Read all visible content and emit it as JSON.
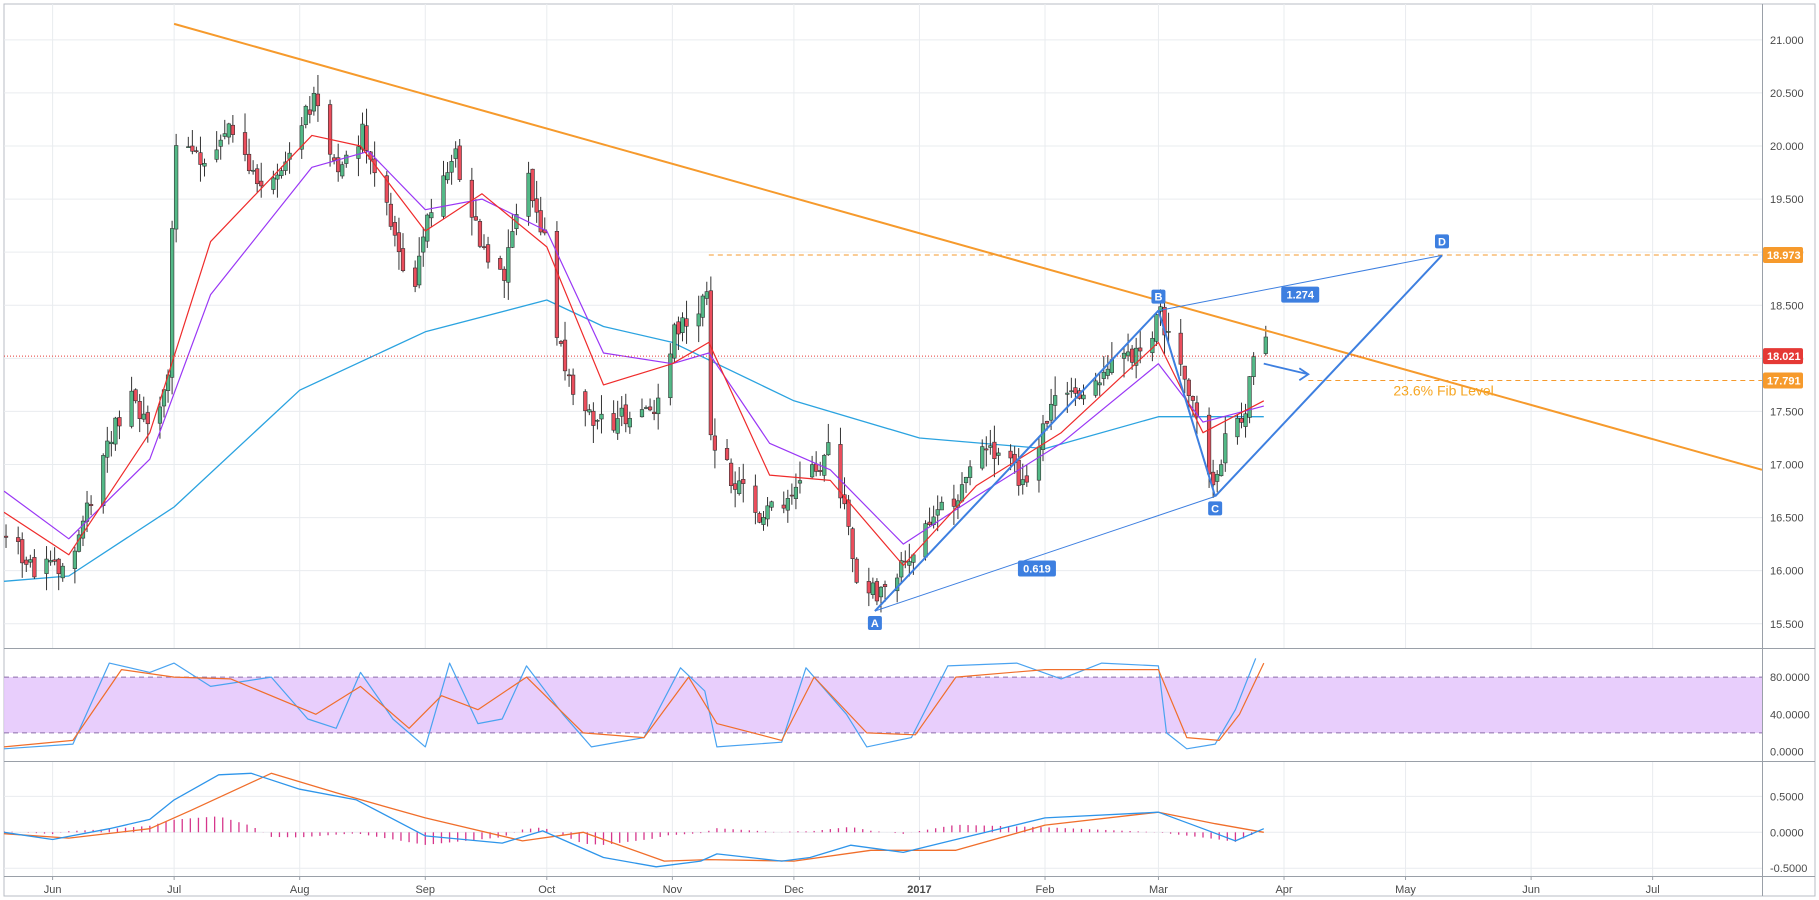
{
  "colors": {
    "bull": "#53b987",
    "bear": "#eb4d5c",
    "ema_fast": "#ef2b2b",
    "ema_mid": "#9a37f5",
    "ma_slow": "#2ba3e0",
    "trendline": "#f69a2c",
    "pattern": "#3d7fe0",
    "stoch_k": "#4aa3f0",
    "stoch_d": "#f06e2b",
    "stoch_band": "#e4c6fb",
    "macd": "#2e95ea",
    "signal": "#f06e2b",
    "hist": "#d6368c",
    "current_price": "#e53935",
    "level_tag": "#f69a2c",
    "grid": "#e9ecef"
  },
  "chart_data": [
    {
      "type": "candlestick",
      "panel": "price",
      "ylim": [
        15.3,
        21.3
      ],
      "price_ticks": [
        "21.000",
        "20.500",
        "20.000",
        "19.500",
        "19.000",
        "18.500",
        "18.000",
        "17.500",
        "17.000",
        "16.500",
        "16.000",
        "15.500"
      ],
      "date_range": [
        "2016-05-20",
        "2017-07-28"
      ],
      "x_ticks": [
        {
          "label": "Jun",
          "date": "2016-06-01"
        },
        {
          "label": "Jul",
          "date": "2016-07-01"
        },
        {
          "label": "Aug",
          "date": "2016-08-01"
        },
        {
          "label": "Sep",
          "date": "2016-09-01"
        },
        {
          "label": "Oct",
          "date": "2016-10-01"
        },
        {
          "label": "Nov",
          "date": "2016-11-01"
        },
        {
          "label": "Dec",
          "date": "2016-12-01"
        },
        {
          "label": "2017",
          "date": "2017-01-01"
        },
        {
          "label": "Feb",
          "date": "2017-02-01"
        },
        {
          "label": "Mar",
          "date": "2017-03-01"
        },
        {
          "label": "Apr",
          "date": "2017-04-01"
        },
        {
          "label": "May",
          "date": "2017-05-01"
        },
        {
          "label": "Jun",
          "date": "2017-06-01"
        },
        {
          "label": "Jul",
          "date": "2017-07-01"
        }
      ],
      "close_path": [
        [
          "2016-05-20",
          16.3
        ],
        [
          "2016-05-27",
          16.05
        ],
        [
          "2016-06-03",
          15.95
        ],
        [
          "2016-06-08",
          16.4
        ],
        [
          "2016-06-15",
          17.3
        ],
        [
          "2016-06-20",
          17.6
        ],
        [
          "2016-06-24",
          17.35
        ],
        [
          "2016-06-29",
          17.85
        ],
        [
          "2016-06-30",
          19.3
        ],
        [
          "2016-07-01",
          20.0
        ],
        [
          "2016-07-08",
          19.8
        ],
        [
          "2016-07-15",
          20.2
        ],
        [
          "2016-07-22",
          19.6
        ],
        [
          "2016-07-28",
          19.85
        ],
        [
          "2016-08-04",
          20.5
        ],
        [
          "2016-08-10",
          19.75
        ],
        [
          "2016-08-16",
          20.1
        ],
        [
          "2016-08-22",
          19.5
        ],
        [
          "2016-08-28",
          18.6
        ],
        [
          "2016-09-01",
          19.3
        ],
        [
          "2016-09-08",
          19.9
        ],
        [
          "2016-09-14",
          19.1
        ],
        [
          "2016-09-20",
          18.8
        ],
        [
          "2016-09-26",
          19.7
        ],
        [
          "2016-09-30",
          19.1
        ],
        [
          "2016-10-03",
          18.2
        ],
        [
          "2016-10-08",
          17.6
        ],
        [
          "2016-10-13",
          17.35
        ],
        [
          "2016-10-20",
          17.45
        ],
        [
          "2016-10-27",
          17.55
        ],
        [
          "2016-11-01",
          18.3
        ],
        [
          "2016-11-09",
          18.55
        ],
        [
          "2016-11-10",
          17.3
        ],
        [
          "2016-11-15",
          16.9
        ],
        [
          "2016-11-21",
          16.55
        ],
        [
          "2016-11-28",
          16.65
        ],
        [
          "2016-12-04",
          16.9
        ],
        [
          "2016-12-09",
          17.1
        ],
        [
          "2016-12-13",
          16.6
        ],
        [
          "2016-12-16",
          15.95
        ],
        [
          "2016-12-22",
          15.75
        ],
        [
          "2016-12-27",
          16.0
        ],
        [
          "2017-01-01",
          16.3
        ],
        [
          "2017-01-10",
          16.75
        ],
        [
          "2017-01-18",
          17.2
        ],
        [
          "2017-01-26",
          16.85
        ],
        [
          "2017-02-03",
          17.55
        ],
        [
          "2017-02-10",
          17.75
        ],
        [
          "2017-02-17",
          17.95
        ],
        [
          "2017-02-24",
          18.05
        ],
        [
          "2017-03-01",
          18.4
        ],
        [
          "2017-03-07",
          17.75
        ],
        [
          "2017-03-10",
          17.4
        ],
        [
          "2017-03-13",
          16.95
        ],
        [
          "2017-03-15",
          16.85
        ],
        [
          "2017-03-17",
          17.3
        ],
        [
          "2017-03-22",
          17.55
        ],
        [
          "2017-03-24",
          18.1
        ]
      ],
      "candle_range": [
        "2016-05-20",
        "2017-03-27"
      ],
      "ema_fast": [
        [
          "2016-05-20",
          16.55
        ],
        [
          "2016-06-05",
          16.15
        ],
        [
          "2016-06-25",
          17.3
        ],
        [
          "2016-07-10",
          19.1
        ],
        [
          "2016-08-04",
          20.1
        ],
        [
          "2016-08-16",
          20.0
        ],
        [
          "2016-09-01",
          19.2
        ],
        [
          "2016-09-15",
          19.55
        ],
        [
          "2016-10-01",
          19.05
        ],
        [
          "2016-10-15",
          17.75
        ],
        [
          "2016-11-01",
          17.95
        ],
        [
          "2016-11-10",
          18.15
        ],
        [
          "2016-11-25",
          16.9
        ],
        [
          "2016-12-10",
          16.85
        ],
        [
          "2016-12-28",
          16.05
        ],
        [
          "2017-01-15",
          16.8
        ],
        [
          "2017-02-05",
          17.3
        ],
        [
          "2017-03-01",
          18.15
        ],
        [
          "2017-03-12",
          17.3
        ],
        [
          "2017-03-27",
          17.6
        ]
      ],
      "ema_mid": [
        [
          "2016-05-20",
          16.75
        ],
        [
          "2016-06-05",
          16.3
        ],
        [
          "2016-06-25",
          17.05
        ],
        [
          "2016-07-10",
          18.6
        ],
        [
          "2016-08-04",
          19.8
        ],
        [
          "2016-08-18",
          19.95
        ],
        [
          "2016-09-01",
          19.4
        ],
        [
          "2016-09-15",
          19.5
        ],
        [
          "2016-10-01",
          19.2
        ],
        [
          "2016-10-15",
          18.05
        ],
        [
          "2016-11-01",
          17.95
        ],
        [
          "2016-11-10",
          18.05
        ],
        [
          "2016-11-25",
          17.2
        ],
        [
          "2016-12-10",
          16.95
        ],
        [
          "2016-12-28",
          16.25
        ],
        [
          "2017-01-15",
          16.7
        ],
        [
          "2017-02-05",
          17.2
        ],
        [
          "2017-03-01",
          17.95
        ],
        [
          "2017-03-12",
          17.4
        ],
        [
          "2017-03-27",
          17.55
        ]
      ],
      "ma_slow": [
        [
          "2016-05-20",
          15.9
        ],
        [
          "2016-06-05",
          15.95
        ],
        [
          "2016-07-01",
          16.6
        ],
        [
          "2016-08-01",
          17.7
        ],
        [
          "2016-09-01",
          18.25
        ],
        [
          "2016-10-01",
          18.55
        ],
        [
          "2016-10-15",
          18.3
        ],
        [
          "2016-11-01",
          18.15
        ],
        [
          "2016-12-01",
          17.6
        ],
        [
          "2017-01-01",
          17.25
        ],
        [
          "2017-02-01",
          17.15
        ],
        [
          "2017-03-01",
          17.45
        ],
        [
          "2017-03-27",
          17.45
        ]
      ],
      "trendline": [
        [
          "2016-07-01",
          21.15
        ],
        [
          "2017-07-28",
          16.95
        ]
      ],
      "abcd_pattern": [
        {
          "label": "A",
          "date": "2016-12-21",
          "price": 15.62
        },
        {
          "label": "B",
          "date": "2017-03-01",
          "price": 18.45
        },
        {
          "label": "C",
          "date": "2017-03-15",
          "price": 16.7
        },
        {
          "label": "D",
          "date": "2017-05-10",
          "price": 18.97
        }
      ],
      "ratio_labels": [
        {
          "text": "0.619",
          "date": "2017-01-30",
          "price": 16.02
        },
        {
          "text": "1.274",
          "date": "2017-04-05",
          "price": 18.6
        }
      ],
      "projection_arrow": [
        [
          "2017-03-27",
          17.95
        ],
        [
          "2017-04-07",
          17.85
        ]
      ],
      "levels": [
        {
          "price": 18.973,
          "label": "18.973",
          "style": "dashed-orange",
          "from": "2016-11-10"
        },
        {
          "price": 18.021,
          "label": "18.021",
          "style": "dotted-red",
          "from": "2016-05-20"
        },
        {
          "price": 17.791,
          "label": "17.791",
          "style": "dashed-orange",
          "from": "2017-04-07"
        }
      ],
      "annotations": [
        {
          "text": "23.6% Fib Level",
          "date": "2017-04-28",
          "price": 17.65
        }
      ]
    },
    {
      "type": "line",
      "panel": "stochastic",
      "ylim": [
        -8,
        108
      ],
      "ticks": [
        "80.0000",
        "40.0000",
        "0.0000"
      ],
      "band": [
        20,
        80
      ],
      "series": [
        {
          "name": "",
          "role": "k",
          "points": [
            [
              "2016-05-20",
              3
            ],
            [
              "2016-06-06",
              8
            ],
            [
              "2016-06-15",
              95
            ],
            [
              "2016-06-25",
              85
            ],
            [
              "2016-07-01",
              95
            ],
            [
              "2016-07-10",
              70
            ],
            [
              "2016-07-25",
              80
            ],
            [
              "2016-08-03",
              35
            ],
            [
              "2016-08-10",
              25
            ],
            [
              "2016-08-16",
              85
            ],
            [
              "2016-08-24",
              35
            ],
            [
              "2016-09-01",
              5
            ],
            [
              "2016-09-07",
              95
            ],
            [
              "2016-09-14",
              30
            ],
            [
              "2016-09-20",
              35
            ],
            [
              "2016-09-26",
              92
            ],
            [
              "2016-10-05",
              40
            ],
            [
              "2016-10-12",
              5
            ],
            [
              "2016-10-25",
              15
            ],
            [
              "2016-11-03",
              90
            ],
            [
              "2016-11-09",
              65
            ],
            [
              "2016-11-12",
              5
            ],
            [
              "2016-11-28",
              10
            ],
            [
              "2016-12-04",
              90
            ],
            [
              "2016-12-14",
              40
            ],
            [
              "2016-12-19",
              5
            ],
            [
              "2016-12-30",
              15
            ],
            [
              "2017-01-08",
              92
            ],
            [
              "2017-01-25",
              95
            ],
            [
              "2017-02-05",
              78
            ],
            [
              "2017-02-15",
              95
            ],
            [
              "2017-03-01",
              92
            ],
            [
              "2017-03-03",
              20
            ],
            [
              "2017-03-08",
              3
            ],
            [
              "2017-03-15",
              8
            ],
            [
              "2017-03-20",
              45
            ],
            [
              "2017-03-25",
              100
            ]
          ]
        },
        {
          "name": "",
          "role": "d",
          "points": [
            [
              "2016-05-20",
              5
            ],
            [
              "2016-06-06",
              12
            ],
            [
              "2016-06-18",
              88
            ],
            [
              "2016-07-01",
              80
            ],
            [
              "2016-07-15",
              78
            ],
            [
              "2016-08-05",
              40
            ],
            [
              "2016-08-16",
              70
            ],
            [
              "2016-08-28",
              25
            ],
            [
              "2016-09-05",
              60
            ],
            [
              "2016-09-14",
              45
            ],
            [
              "2016-09-26",
              80
            ],
            [
              "2016-10-10",
              20
            ],
            [
              "2016-10-25",
              15
            ],
            [
              "2016-11-05",
              80
            ],
            [
              "2016-11-12",
              30
            ],
            [
              "2016-11-28",
              12
            ],
            [
              "2016-12-06",
              80
            ],
            [
              "2016-12-19",
              20
            ],
            [
              "2016-12-31",
              18
            ],
            [
              "2017-01-10",
              80
            ],
            [
              "2017-02-01",
              88
            ],
            [
              "2017-03-01",
              88
            ],
            [
              "2017-03-08",
              15
            ],
            [
              "2017-03-16",
              12
            ],
            [
              "2017-03-21",
              40
            ],
            [
              "2017-03-27",
              95
            ]
          ]
        }
      ]
    },
    {
      "type": "line",
      "panel": "macd",
      "ylim": [
        -0.58,
        0.95
      ],
      "ticks": [
        "0.5000",
        "0.0000",
        "-0.5000"
      ],
      "series": [
        {
          "name": "",
          "role": "macd",
          "points": [
            [
              "2016-05-20",
              0.0
            ],
            [
              "2016-06-01",
              -0.1
            ],
            [
              "2016-06-15",
              0.05
            ],
            [
              "2016-06-25",
              0.18
            ],
            [
              "2016-07-01",
              0.45
            ],
            [
              "2016-07-12",
              0.8
            ],
            [
              "2016-07-20",
              0.82
            ],
            [
              "2016-08-01",
              0.6
            ],
            [
              "2016-08-15",
              0.45
            ],
            [
              "2016-09-01",
              -0.05
            ],
            [
              "2016-09-20",
              -0.15
            ],
            [
              "2016-09-30",
              0.02
            ],
            [
              "2016-10-15",
              -0.35
            ],
            [
              "2016-10-28",
              -0.48
            ],
            [
              "2016-11-08",
              -0.4
            ],
            [
              "2016-11-12",
              -0.3
            ],
            [
              "2016-11-28",
              -0.4
            ],
            [
              "2016-12-05",
              -0.35
            ],
            [
              "2016-12-15",
              -0.18
            ],
            [
              "2016-12-28",
              -0.28
            ],
            [
              "2017-01-10",
              -0.1
            ],
            [
              "2017-02-01",
              0.2
            ],
            [
              "2017-03-01",
              0.28
            ],
            [
              "2017-03-12",
              0.05
            ],
            [
              "2017-03-20",
              -0.12
            ],
            [
              "2017-03-27",
              0.05
            ]
          ]
        },
        {
          "name": "",
          "role": "signal",
          "points": [
            [
              "2016-05-20",
              -0.02
            ],
            [
              "2016-06-05",
              -0.08
            ],
            [
              "2016-06-25",
              0.05
            ],
            [
              "2016-07-05",
              0.3
            ],
            [
              "2016-07-25",
              0.82
            ],
            [
              "2016-08-10",
              0.55
            ],
            [
              "2016-09-01",
              0.2
            ],
            [
              "2016-09-25",
              -0.12
            ],
            [
              "2016-10-10",
              0.0
            ],
            [
              "2016-10-30",
              -0.4
            ],
            [
              "2016-11-10",
              -0.38
            ],
            [
              "2016-12-01",
              -0.4
            ],
            [
              "2016-12-20",
              -0.25
            ],
            [
              "2017-01-10",
              -0.25
            ],
            [
              "2017-02-01",
              0.1
            ],
            [
              "2017-03-01",
              0.28
            ],
            [
              "2017-03-15",
              0.12
            ],
            [
              "2017-03-27",
              0.0
            ]
          ]
        }
      ],
      "histogram_hint": "macd minus signal"
    }
  ]
}
